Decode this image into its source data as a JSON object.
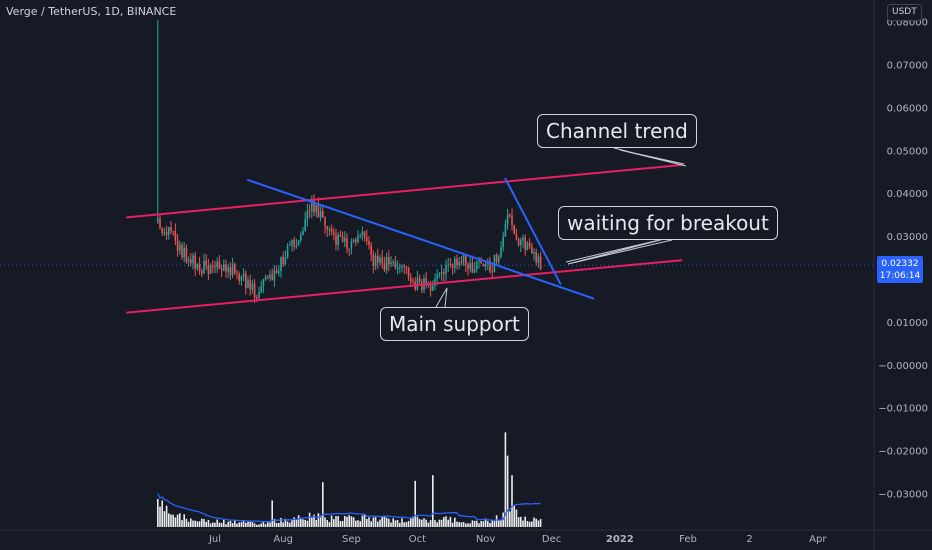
{
  "header": {
    "title": "Verge / TetherUS, 1D, BINANCE",
    "currency": "USDT"
  },
  "last_price": {
    "value": "0.02332",
    "countdown": "17:06:14"
  },
  "colors": {
    "background": "#161a25",
    "up": "#26a69a",
    "down": "#ef5350",
    "channel": "#e91e63",
    "trendline": "#2962ff",
    "volume": "#ffffff",
    "volume_ma": "#2962ff"
  },
  "annotations": {
    "channel_trend": "Channel trend",
    "breakout": "waiting for breakout",
    "main_support": "Main support"
  },
  "chart_data": {
    "type": "candlestick",
    "symbol": "Verge / TetherUS",
    "interval": "1D",
    "exchange": "BINANCE",
    "y_axis_labels": [
      "0.08000",
      "0.07000",
      "0.06000",
      "0.05000",
      "0.04000",
      "0.03000",
      "0.02332",
      "0.01000",
      "−0.00000",
      "−0.01000",
      "−0.02000",
      "−0.03000"
    ],
    "y_range": [
      -0.0355,
      0.0805
    ],
    "x_axis_labels": [
      "Jul",
      "Aug",
      "Sep",
      "Oct",
      "Nov",
      "Dec",
      "2022",
      "Feb",
      "2",
      "Apr"
    ],
    "x_range": [
      "2021-06-01",
      "2022-04-05"
    ],
    "close_anchors": [
      {
        "date": "2021-06-05",
        "close": 0.0335
      },
      {
        "date": "2021-06-10",
        "close": 0.031
      },
      {
        "date": "2021-06-17",
        "close": 0.026
      },
      {
        "date": "2021-06-22",
        "close": 0.0235
      },
      {
        "date": "2021-06-29",
        "close": 0.0225
      },
      {
        "date": "2021-07-05",
        "close": 0.0235
      },
      {
        "date": "2021-07-12",
        "close": 0.0215
      },
      {
        "date": "2021-07-20",
        "close": 0.0165
      },
      {
        "date": "2021-07-28",
        "close": 0.0215
      },
      {
        "date": "2021-08-04",
        "close": 0.027
      },
      {
        "date": "2021-08-10",
        "close": 0.032
      },
      {
        "date": "2021-08-14",
        "close": 0.037
      },
      {
        "date": "2021-08-19",
        "close": 0.034
      },
      {
        "date": "2021-08-26",
        "close": 0.029
      },
      {
        "date": "2021-09-03",
        "close": 0.028
      },
      {
        "date": "2021-09-07",
        "close": 0.0305
      },
      {
        "date": "2021-09-10",
        "close": 0.025
      },
      {
        "date": "2021-09-18",
        "close": 0.0235
      },
      {
        "date": "2021-09-25",
        "close": 0.024
      },
      {
        "date": "2021-09-29",
        "close": 0.0195
      },
      {
        "date": "2021-10-07",
        "close": 0.018
      },
      {
        "date": "2021-10-13",
        "close": 0.022
      },
      {
        "date": "2021-10-21",
        "close": 0.025
      },
      {
        "date": "2021-10-28",
        "close": 0.0225
      },
      {
        "date": "2021-11-04",
        "close": 0.0235
      },
      {
        "date": "2021-11-08",
        "close": 0.028
      },
      {
        "date": "2021-11-11",
        "close": 0.0355
      },
      {
        "date": "2021-11-15",
        "close": 0.03
      },
      {
        "date": "2021-11-20",
        "close": 0.027
      },
      {
        "date": "2021-11-26",
        "close": 0.0235
      }
    ],
    "spike_wick": {
      "date": "2021-06-05",
      "high": 0.0805
    },
    "drawings": [
      {
        "name": "channel-upper",
        "color": "#e91e63",
        "from": {
          "date": "2021-05-22",
          "price": 0.0345
        },
        "to": {
          "date": "2022-01-29",
          "price": 0.0467
        }
      },
      {
        "name": "channel-lower",
        "color": "#e91e63",
        "from": {
          "date": "2021-05-22",
          "price": 0.0123
        },
        "to": {
          "date": "2022-01-29",
          "price": 0.0245
        }
      },
      {
        "name": "descending-trendline",
        "color": "#2962ff",
        "from": {
          "date": "2021-07-16",
          "price": 0.0432
        },
        "to": {
          "date": "2021-12-20",
          "price": 0.0156
        }
      },
      {
        "name": "steep-trendline",
        "color": "#2962ff",
        "from": {
          "date": "2021-11-10",
          "price": 0.0435
        },
        "to": {
          "date": "2021-12-05",
          "price": 0.019
        }
      }
    ],
    "volume_anchors": [
      {
        "date": "2021-06-05",
        "v": 0.85
      },
      {
        "date": "2021-06-10",
        "v": 0.55
      },
      {
        "date": "2021-06-20",
        "v": 0.3
      },
      {
        "date": "2021-07-05",
        "v": 0.2
      },
      {
        "date": "2021-07-20",
        "v": 0.15
      },
      {
        "date": "2021-08-05",
        "v": 0.3
      },
      {
        "date": "2021-08-15",
        "v": 0.45
      },
      {
        "date": "2021-08-25",
        "v": 0.3
      },
      {
        "date": "2021-09-07",
        "v": 0.4
      },
      {
        "date": "2021-09-20",
        "v": 0.25
      },
      {
        "date": "2021-10-01",
        "v": 0.3
      },
      {
        "date": "2021-10-15",
        "v": 0.3
      },
      {
        "date": "2021-10-28",
        "v": 0.2
      },
      {
        "date": "2021-11-08",
        "v": 0.35
      },
      {
        "date": "2021-11-11",
        "v": 0.9
      },
      {
        "date": "2021-11-15",
        "v": 0.5
      },
      {
        "date": "2021-11-26",
        "v": 0.25
      }
    ],
    "volume_spikes": [
      {
        "date": "2021-06-05",
        "v": 1.0
      },
      {
        "date": "2021-07-27",
        "v": 0.95
      },
      {
        "date": "2021-08-19",
        "v": 1.6
      },
      {
        "date": "2021-09-30",
        "v": 1.65
      },
      {
        "date": "2021-10-08",
        "v": 1.85
      },
      {
        "date": "2021-11-10",
        "v": 3.38
      },
      {
        "date": "2021-11-11",
        "v": 2.55
      },
      {
        "date": "2021-11-13",
        "v": 1.85
      }
    ]
  }
}
